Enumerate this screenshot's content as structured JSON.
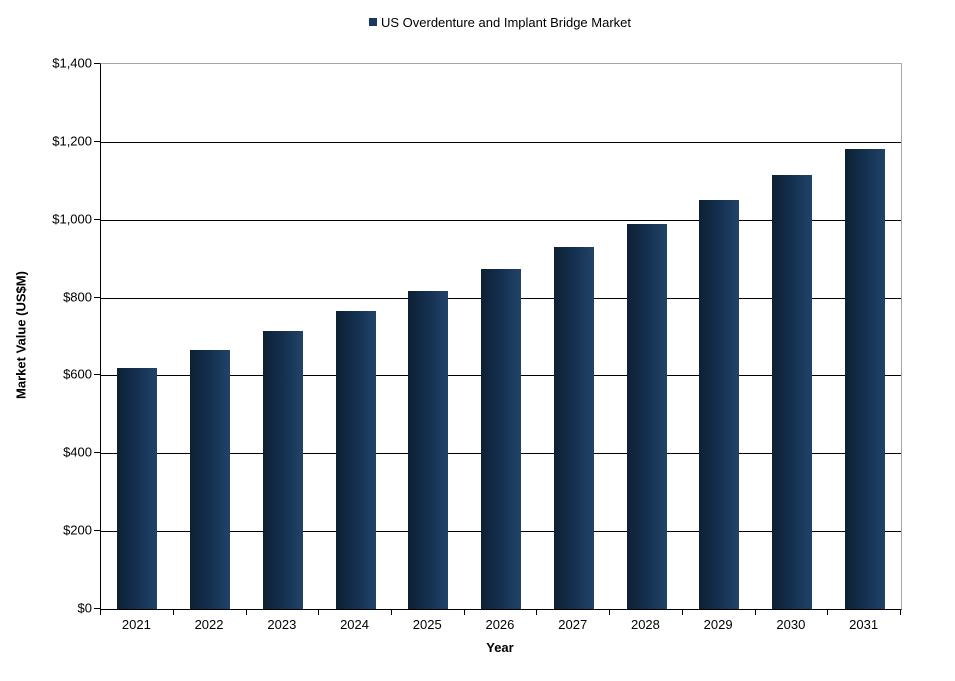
{
  "legend": {
    "label": "US Overdenture and Implant Bridge Market",
    "marker_color": "#1a3a5f"
  },
  "chart_data": {
    "type": "bar",
    "title": "",
    "series_name": "US Overdenture and Implant Bridge Market",
    "categories": [
      "2021",
      "2022",
      "2023",
      "2024",
      "2025",
      "2026",
      "2027",
      "2028",
      "2029",
      "2030",
      "2031"
    ],
    "values": [
      618,
      666,
      713,
      765,
      817,
      873,
      930,
      988,
      1050,
      1114,
      1182
    ],
    "xlabel": "Year",
    "ylabel": "Market Value (US$M)",
    "ylim": [
      0,
      1400
    ],
    "ytick_step": 200,
    "ytick_labels": [
      "$0",
      "$200",
      "$400",
      "$600",
      "$800",
      "$1,000",
      "$1,200",
      "$1,400"
    ],
    "grid": true,
    "legend_position": "top-center",
    "colors": {
      "bar_gradient_left": "#0d2033",
      "bar_gradient_mid": "#143050",
      "bar_gradient_right": "#214369",
      "gridline": "#000000",
      "axis_line": "#000000",
      "plot_border": "#a6a6a6",
      "text": "#000000"
    }
  }
}
